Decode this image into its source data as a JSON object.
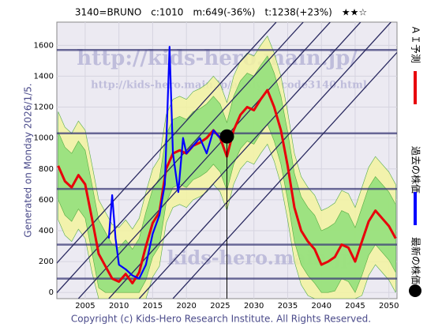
{
  "chart_data": {
    "type": "line",
    "title": "3140=BRUNO　c:1010　m:649(-36%)　t:1238(+23%)　★★☆",
    "side_note": "Generated on Monday 2026/1/5.",
    "footer": "Copyright (c) Kids-Hero Research Institute. All Rights Reserved.",
    "watermarks": [
      "http://kids-hero.main.jp/",
      "http://kids-hero.main.jp/analysis/code3140.html",
      "kids-hero.main.jp"
    ],
    "xlim": [
      2000.8,
      2051.2
    ],
    "ylim": [
      -40,
      1750
    ],
    "xticks": [
      2005,
      2010,
      2015,
      2020,
      2025,
      2030,
      2035,
      2040,
      2045,
      2050
    ],
    "yticks": [
      0,
      200,
      400,
      600,
      800,
      1000,
      1200,
      1400,
      1600
    ],
    "x": [
      2001,
      2002,
      2003,
      2004,
      2005,
      2006,
      2007,
      2008,
      2009,
      2010,
      2011,
      2012,
      2013,
      2014,
      2015,
      2016,
      2017,
      2018,
      2019,
      2020,
      2021,
      2022,
      2023,
      2024,
      2025,
      2026,
      2027,
      2028,
      2029,
      2030,
      2031,
      2032,
      2033,
      2034,
      2035,
      2036,
      2037,
      2038,
      2039,
      2040,
      2041,
      2042,
      2043,
      2044,
      2045,
      2046,
      2047,
      2048,
      2049,
      2050,
      2051
    ],
    "bands": [
      {
        "color": "#f4f4a0",
        "upper": [
          1170,
          1070,
          1030,
          1110,
          1050,
          830,
          600,
          520,
          440,
          420,
          470,
          410,
          480,
          650,
          800,
          870,
          1150,
          1250,
          1270,
          1250,
          1300,
          1320,
          1350,
          1400,
          1350,
          1230,
          1400,
          1500,
          1550,
          1530,
          1600,
          1660,
          1550,
          1400,
          1170,
          900,
          750,
          680,
          630,
          530,
          550,
          580,
          660,
          640,
          550,
          680,
          810,
          880,
          830,
          780,
          700
        ],
        "lower": [
          470,
          370,
          330,
          410,
          350,
          130,
          -40,
          -40,
          -40,
          -40,
          -40,
          -40,
          -40,
          -40,
          100,
          170,
          450,
          550,
          570,
          550,
          600,
          620,
          650,
          700,
          650,
          530,
          700,
          800,
          850,
          830,
          900,
          960,
          850,
          700,
          470,
          200,
          50,
          -20,
          -40,
          -40,
          -40,
          -40,
          -40,
          -40,
          -40,
          -20,
          110,
          180,
          130,
          80,
          0
        ]
      },
      {
        "color": "#8fe07a",
        "upper": [
          1040,
          940,
          900,
          980,
          920,
          700,
          470,
          390,
          310,
          290,
          340,
          280,
          350,
          520,
          670,
          740,
          1020,
          1120,
          1140,
          1120,
          1170,
          1190,
          1220,
          1270,
          1220,
          1100,
          1270,
          1370,
          1420,
          1400,
          1470,
          1530,
          1420,
          1270,
          1040,
          770,
          620,
          550,
          500,
          400,
          420,
          450,
          530,
          510,
          420,
          550,
          680,
          750,
          700,
          650,
          570
        ],
        "lower": [
          600,
          500,
          460,
          540,
          480,
          260,
          30,
          0,
          0,
          0,
          0,
          0,
          0,
          80,
          230,
          300,
          580,
          680,
          700,
          680,
          730,
          750,
          780,
          830,
          780,
          660,
          830,
          930,
          980,
          960,
          1030,
          1090,
          980,
          830,
          600,
          330,
          180,
          110,
          60,
          0,
          0,
          10,
          90,
          70,
          0,
          110,
          240,
          310,
          260,
          210,
          130
        ]
      }
    ],
    "hlines": [
      1570,
      1030,
      670,
      310,
      90
    ],
    "trend_lines": [
      [
        1996,
        -40,
        2033.3,
        1750
      ],
      [
        2000,
        -40,
        2037.3,
        1750
      ],
      [
        2004,
        -40,
        2041.3,
        1750
      ],
      [
        2008.5,
        -40,
        2045.8,
        1750
      ],
      [
        2013,
        -40,
        2050.3,
        1750
      ],
      [
        2018,
        -40,
        2055.3,
        1750
      ]
    ],
    "series": [
      {
        "name": "ＡＩ予測",
        "color": "#e8000b",
        "values": [
          820,
          720,
          680,
          760,
          700,
          480,
          250,
          170,
          90,
          70,
          120,
          60,
          130,
          300,
          450,
          520,
          800,
          900,
          920,
          900,
          950,
          970,
          1000,
          1050,
          1000,
          880,
          1050,
          1150,
          1200,
          1180,
          1250,
          1310,
          1200,
          1050,
          820,
          550,
          400,
          330,
          280,
          180,
          200,
          230,
          310,
          290,
          200,
          330,
          460,
          530,
          480,
          430,
          350
        ]
      },
      {
        "name": "過去の株価",
        "color": "#0000ff",
        "x": [
          2008.5,
          2009,
          2009.5,
          2010,
          2011,
          2012,
          2013,
          2014,
          2015,
          2016,
          2016.8,
          2017.2,
          2017.5,
          2018,
          2018.8,
          2019.5,
          2020,
          2021,
          2022,
          2023,
          2024,
          2025,
          2025.5
        ],
        "values": [
          350,
          630,
          350,
          180,
          150,
          110,
          90,
          180,
          380,
          500,
          700,
          1200,
          1590,
          900,
          650,
          1000,
          900,
          950,
          1000,
          900,
          1050,
          1000,
          1010
        ]
      }
    ],
    "latest": {
      "name": "最新の株価",
      "color": "#000000",
      "x": 2026,
      "value": 1010
    }
  }
}
